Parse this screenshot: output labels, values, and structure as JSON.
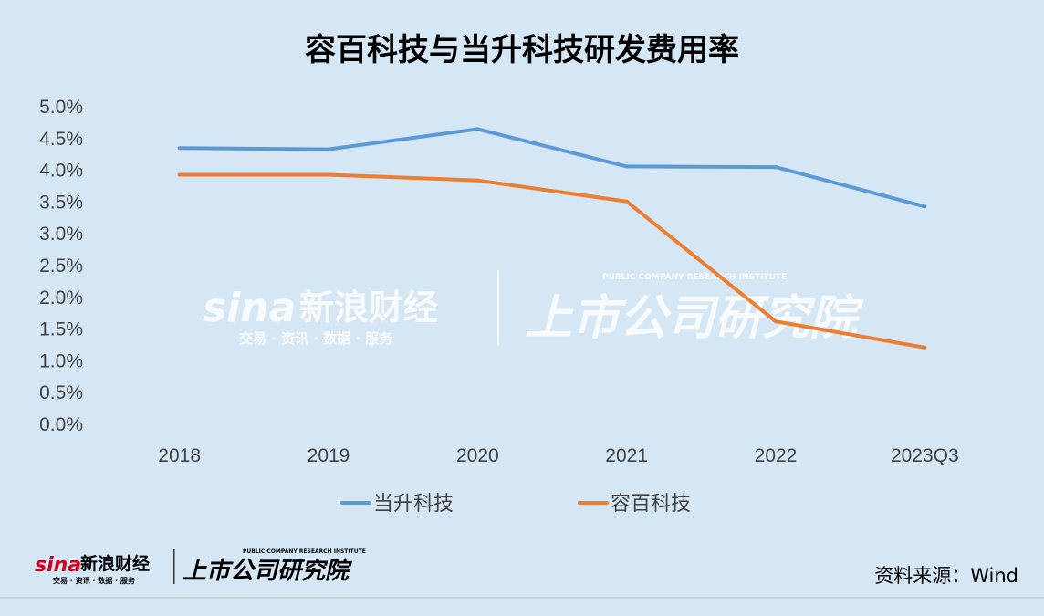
{
  "chart_data": {
    "type": "line",
    "title": "容百科技与当升科技研发费用率",
    "categories": [
      "2018",
      "2019",
      "2020",
      "2021",
      "2022",
      "2023Q3"
    ],
    "yticks": [
      "0.0%",
      "0.5%",
      "1.0%",
      "1.5%",
      "2.0%",
      "2.5%",
      "3.0%",
      "3.5%",
      "4.0%",
      "4.5%",
      "5.0%"
    ],
    "ylim": [
      0,
      5.0
    ],
    "grid": false,
    "legend_position": "bottom",
    "series": [
      {
        "name": "当升科技",
        "color": "#5b9bd5",
        "values": [
          4.35,
          4.33,
          4.65,
          4.06,
          4.05,
          3.43
        ]
      },
      {
        "name": "容百科技",
        "color": "#ed7d31",
        "values": [
          3.93,
          3.93,
          3.84,
          3.51,
          1.62,
          1.21
        ]
      }
    ]
  },
  "source": "资料来源：Wind",
  "watermark": {
    "brand": "sina",
    "brand_cn": "新浪财经",
    "tagline": "交易 · 资讯 · 数据 · 服务",
    "institute": "上市公司研究院",
    "institute_en": "PUBLIC COMPANY RESEARCH INSTITUTE"
  },
  "footer_logo": {
    "brand": "sina",
    "brand_cn": "新浪财经",
    "tagline": "交易 · 资讯 · 数据 · 服务",
    "institute": "上市公司研究院",
    "institute_en": "PUBLIC COMPANY RESEARCH INSTITUTE"
  }
}
